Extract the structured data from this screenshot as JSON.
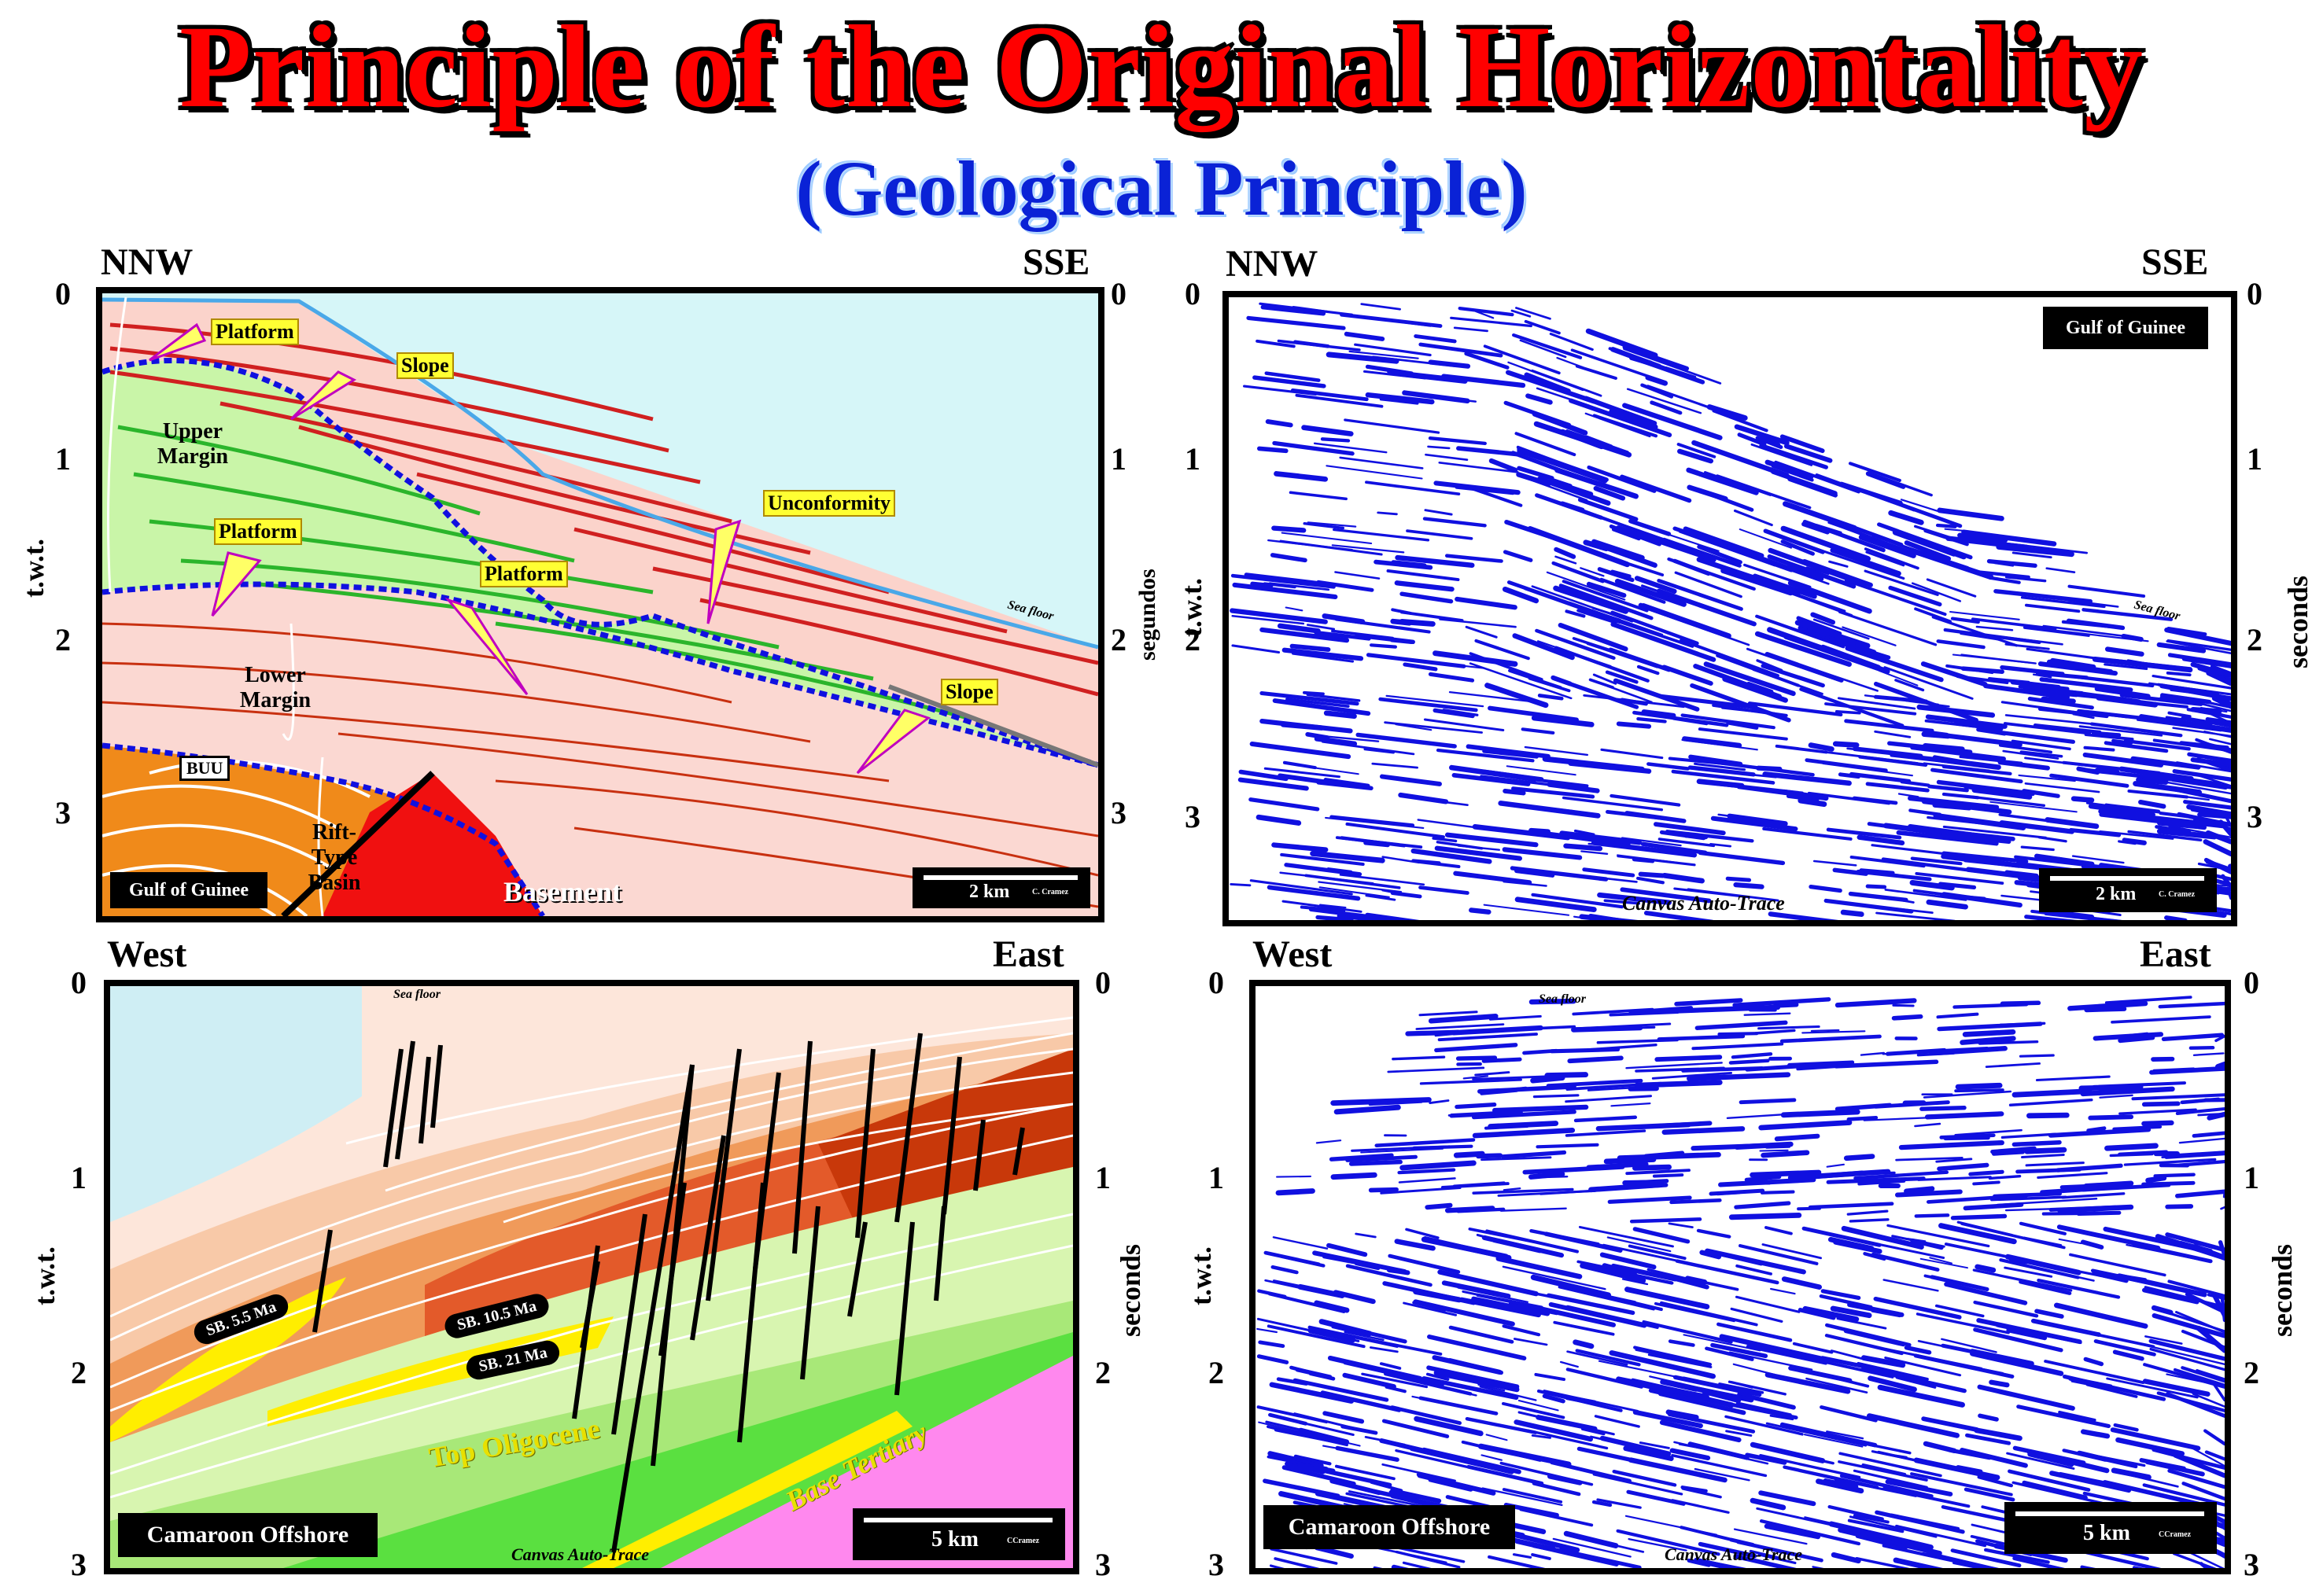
{
  "title": "Principle of the Original Horizontality",
  "subtitle": "(Geological Principle)",
  "panels": {
    "top_left": {
      "left_dir": "NNW",
      "right_dir": "SSE",
      "left_axis": "t.w.t.",
      "right_axis": "segundos",
      "ticks_left": [
        "0",
        "1",
        "2",
        "3"
      ],
      "ticks_right": [
        "0",
        "1",
        "2",
        "3"
      ],
      "badge": "Gulf of Guinee",
      "scale": "2 km",
      "credit": "C. Cramez",
      "sea_floor": "Sea floor",
      "callouts": [
        "Platform",
        "Slope",
        "Platform",
        "Platform",
        "Unconformity",
        "Slope"
      ],
      "notes": [
        "Upper Margin",
        "Lower Margin",
        "Rift-Type Basin"
      ],
      "buu": "BUU",
      "basement": "Basement"
    },
    "top_right": {
      "left_dir": "NNW",
      "right_dir": "SSE",
      "left_axis": "t.w.t.",
      "right_axis": "seconds",
      "ticks_left": [
        "0",
        "1",
        "2",
        "3"
      ],
      "ticks_right": [
        "0",
        "1",
        "2",
        "3"
      ],
      "badge": "Gulf of Guinee",
      "scale": "2 km",
      "credit": "C. Cramez",
      "sea_floor": "Sea floor",
      "auto": "Canvas Auto-Trace"
    },
    "bottom_left": {
      "left_dir": "West",
      "right_dir": "East",
      "left_axis": "t.w.t.",
      "right_axis": "seconds",
      "ticks_left": [
        "0",
        "1",
        "2",
        "3"
      ],
      "ticks_right": [
        "0",
        "1",
        "2",
        "3"
      ],
      "badge": "Camaroon Offshore",
      "scale": "5 km",
      "credit": "CCramez",
      "sea_floor": "Sea floor",
      "auto": "Canvas Auto-Trace",
      "sb": [
        "SB. 5.5 Ma",
        "SB. 10.5 Ma",
        "SB. 21 Ma"
      ],
      "top_olig": "Top Oligocene",
      "base_tert": "Base Tertiary"
    },
    "bottom_right": {
      "left_dir": "West",
      "right_dir": "East",
      "left_axis": "t.w.t.",
      "right_axis": "seconds",
      "ticks_left": [
        "0",
        "1",
        "2",
        "3"
      ],
      "ticks_right": [
        "0",
        "1",
        "2",
        "3"
      ],
      "badge": "Camaroon Offshore",
      "scale": "5 km",
      "credit": "CCramez",
      "sea_floor": "Sea floor",
      "auto": "Canvas Auto-Trace"
    }
  },
  "colors": {
    "title": "#ff0000",
    "subtitle": "#0a22d6",
    "seismic": "#1010e0",
    "sea": "#d6f6f8",
    "pink": "#fbd8d2",
    "green": "#c9f5a8",
    "orange": "#f08a1a",
    "basement": "#f01010"
  }
}
